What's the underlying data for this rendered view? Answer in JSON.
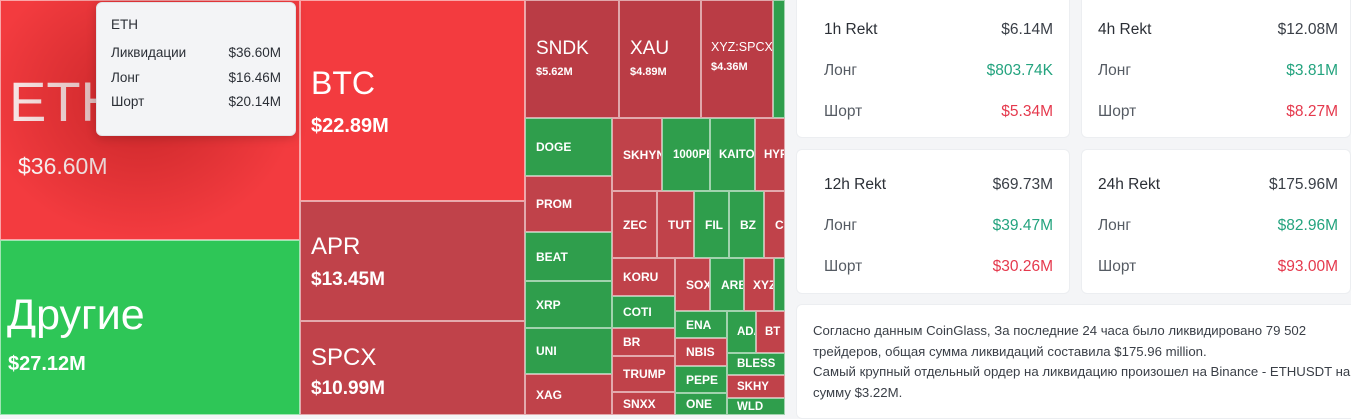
{
  "treemap": {
    "eth": {
      "symbol": "ETH",
      "value": "$36.60M"
    },
    "btc": {
      "symbol": "BTC",
      "value": "$22.89M"
    },
    "other": {
      "symbol": "Другие",
      "value": "$27.12M"
    },
    "apr": {
      "symbol": "APR",
      "value": "$13.45M"
    },
    "spcx": {
      "symbol": "SPCX",
      "value": "$10.99M"
    },
    "sndk": {
      "symbol": "SNDK",
      "value": "$5.62M"
    },
    "xau": {
      "symbol": "XAU",
      "value": "$4.89M"
    },
    "xyzspcx": {
      "symbol": "XYZ:SPCX",
      "value": "$4.36M"
    },
    "doge": {
      "symbol": "DOGE"
    },
    "prom": {
      "symbol": "PROM"
    },
    "beat": {
      "symbol": "BEAT"
    },
    "xrp": {
      "symbol": "XRP"
    },
    "uni": {
      "symbol": "UNI"
    },
    "xag": {
      "symbol": "XAG"
    },
    "skhyn": {
      "symbol": "SKHYN"
    },
    "p1000": {
      "symbol": "1000PE"
    },
    "kaito": {
      "symbol": "KAITO"
    },
    "hyp": {
      "symbol": "HYP"
    },
    "zec": {
      "symbol": "ZEC"
    },
    "tut": {
      "symbol": "TUT"
    },
    "fil": {
      "symbol": "FIL"
    },
    "bz": {
      "symbol": "BZ"
    },
    "cv": {
      "symbol": "CV"
    },
    "koru": {
      "symbol": "KORU"
    },
    "sox": {
      "symbol": "SOX"
    },
    "arb": {
      "symbol": "ARB"
    },
    "xyz": {
      "symbol": "XYZ"
    },
    "coti": {
      "symbol": "COTI"
    },
    "ena": {
      "symbol": "ENA"
    },
    "ada": {
      "symbol": "ADA"
    },
    "bt": {
      "symbol": "BT"
    },
    "br": {
      "symbol": "BR"
    },
    "nbis": {
      "symbol": "NBIS"
    },
    "bless": {
      "symbol": "BLESS"
    },
    "trump": {
      "symbol": "TRUMP"
    },
    "pepe": {
      "symbol": "PEPE"
    },
    "skhy": {
      "symbol": "SKHY"
    },
    "snxx": {
      "symbol": "SNXX"
    },
    "one": {
      "symbol": "ONE"
    },
    "wld": {
      "symbol": "WLD"
    }
  },
  "tooltip": {
    "title": "ETH",
    "rows": [
      {
        "label": "Ликвидации",
        "value": "$36.60M"
      },
      {
        "label": "Лонг",
        "value": "$16.46M"
      },
      {
        "label": "Шорт",
        "value": "$20.14M"
      }
    ]
  },
  "cards": [
    {
      "title": "1h Rekt",
      "total": "$6.14M",
      "long_label": "Лонг",
      "long": "$803.74K",
      "short_label": "Шорт",
      "short": "$5.34M"
    },
    {
      "title": "4h Rekt",
      "total": "$12.08M",
      "long_label": "Лонг",
      "long": "$3.81M",
      "short_label": "Шорт",
      "short": "$8.27M"
    },
    {
      "title": "12h Rekt",
      "total": "$69.73M",
      "long_label": "Лонг",
      "long": "$39.47M",
      "short_label": "Шорт",
      "short": "$30.26M"
    },
    {
      "title": "24h Rekt",
      "total": "$175.96M",
      "long_label": "Лонг",
      "long": "$82.96M",
      "short_label": "Шорт",
      "short": "$93.00M"
    }
  ],
  "summary": {
    "line1": "Согласно данным CoinGlass, За последние 24 часа было ликвидировано 79 502 трейдеров, общая сумма ликвидаций составила $175.96 million.",
    "line2": "Самый крупный отдельный ордер на ликвидацию произошел на Binance - ETHUSDT на сумму $3.22M."
  }
}
